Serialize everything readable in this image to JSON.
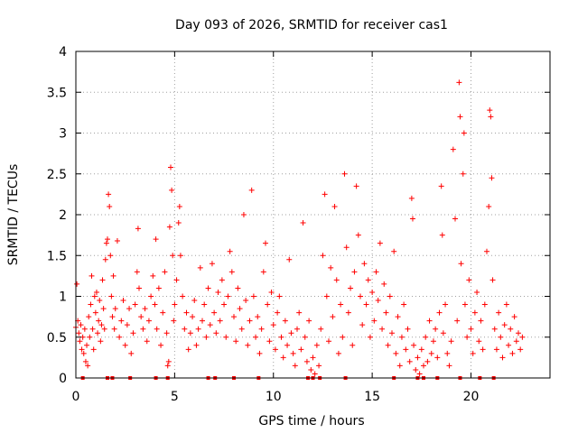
{
  "chart_data": {
    "type": "scatter",
    "title": "Day 093 of 2026, SRMTID for receiver cas1",
    "xlabel": "GPS time / hours",
    "ylabel": "SRMTID / TECUs",
    "xlim": [
      0,
      24
    ],
    "ylim": [
      0,
      4
    ],
    "xticks": [
      0,
      5,
      10,
      15,
      20
    ],
    "xtick_labels": [
      "0",
      "5",
      "10",
      "15",
      "20"
    ],
    "yticks": [
      0,
      0.5,
      1,
      1.5,
      2,
      2.5,
      3,
      3.5,
      4
    ],
    "ytick_labels": [
      "0",
      "0.5",
      "1",
      "1.5",
      "2",
      "2.5",
      "3",
      "3.5",
      "4"
    ],
    "grid": true,
    "marker": "plus",
    "color": "#ff0000",
    "series": [
      {
        "name": "SRMTID",
        "points": [
          [
            0.0,
            0.62
          ],
          [
            0.05,
            1.15
          ],
          [
            0.1,
            0.7
          ],
          [
            0.15,
            0.55
          ],
          [
            0.2,
            0.45
          ],
          [
            0.25,
            0.65
          ],
          [
            0.3,
            0.35
          ],
          [
            0.35,
            0.5
          ],
          [
            0.4,
            0.3
          ],
          [
            0.45,
            0.6
          ],
          [
            0.5,
            0.2
          ],
          [
            0.55,
            0.4
          ],
          [
            0.6,
            0.15
          ],
          [
            0.65,
            0.75
          ],
          [
            0.7,
            0.5
          ],
          [
            0.75,
            0.9
          ],
          [
            0.8,
            1.25
          ],
          [
            0.85,
            0.6
          ],
          [
            0.9,
            0.35
          ],
          [
            0.95,
            1.0
          ],
          [
            1.0,
            0.8
          ],
          [
            1.05,
            1.05
          ],
          [
            1.1,
            0.55
          ],
          [
            1.15,
            0.7
          ],
          [
            1.2,
            0.95
          ],
          [
            1.25,
            0.45
          ],
          [
            1.3,
            0.65
          ],
          [
            1.35,
            1.2
          ],
          [
            1.4,
            0.85
          ],
          [
            1.45,
            0.6
          ],
          [
            1.5,
            1.45
          ],
          [
            1.55,
            1.65
          ],
          [
            1.6,
            1.7
          ],
          [
            1.65,
            2.25
          ],
          [
            1.7,
            2.1
          ],
          [
            1.75,
            1.5
          ],
          [
            1.8,
            1.0
          ],
          [
            1.85,
            0.75
          ],
          [
            1.9,
            1.25
          ],
          [
            1.95,
            0.6
          ],
          [
            2.0,
            0.85
          ],
          [
            2.1,
            1.68
          ],
          [
            2.2,
            0.5
          ],
          [
            2.3,
            0.7
          ],
          [
            2.4,
            0.95
          ],
          [
            2.5,
            0.4
          ],
          [
            2.6,
            0.65
          ],
          [
            2.7,
            0.85
          ],
          [
            2.8,
            0.3
          ],
          [
            2.9,
            0.55
          ],
          [
            3.0,
            0.9
          ],
          [
            3.1,
            1.3
          ],
          [
            3.15,
            1.83
          ],
          [
            3.2,
            1.1
          ],
          [
            3.3,
            0.75
          ],
          [
            3.4,
            0.6
          ],
          [
            3.5,
            0.85
          ],
          [
            3.6,
            0.45
          ],
          [
            3.7,
            0.7
          ],
          [
            3.8,
            1.0
          ],
          [
            3.9,
            1.25
          ],
          [
            4.0,
            0.9
          ],
          [
            4.05,
            1.7
          ],
          [
            4.1,
            0.6
          ],
          [
            4.2,
            1.1
          ],
          [
            4.3,
            0.4
          ],
          [
            4.4,
            0.8
          ],
          [
            4.5,
            1.3
          ],
          [
            4.6,
            0.55
          ],
          [
            4.65,
            0.15
          ],
          [
            4.7,
            0.2
          ],
          [
            4.75,
            1.85
          ],
          [
            4.8,
            2.58
          ],
          [
            4.85,
            2.3
          ],
          [
            4.9,
            1.5
          ],
          [
            4.95,
            0.7
          ],
          [
            5.0,
            0.9
          ],
          [
            5.1,
            1.2
          ],
          [
            5.2,
            1.9
          ],
          [
            5.25,
            2.1
          ],
          [
            5.3,
            1.5
          ],
          [
            5.4,
            1.0
          ],
          [
            5.5,
            0.6
          ],
          [
            5.6,
            0.8
          ],
          [
            5.7,
            0.35
          ],
          [
            5.8,
            0.55
          ],
          [
            5.9,
            0.75
          ],
          [
            6.0,
            0.95
          ],
          [
            6.1,
            0.4
          ],
          [
            6.2,
            0.6
          ],
          [
            6.3,
            1.35
          ],
          [
            6.4,
            0.7
          ],
          [
            6.5,
            0.9
          ],
          [
            6.6,
            0.5
          ],
          [
            6.7,
            1.1
          ],
          [
            6.8,
            0.65
          ],
          [
            6.9,
            1.4
          ],
          [
            7.0,
            0.8
          ],
          [
            7.1,
            0.55
          ],
          [
            7.2,
            1.05
          ],
          [
            7.3,
            0.7
          ],
          [
            7.4,
            1.2
          ],
          [
            7.5,
            0.9
          ],
          [
            7.6,
            0.5
          ],
          [
            7.7,
            1.0
          ],
          [
            7.8,
            1.55
          ],
          [
            7.9,
            1.3
          ],
          [
            8.0,
            0.75
          ],
          [
            8.1,
            0.45
          ],
          [
            8.2,
            1.1
          ],
          [
            8.3,
            0.85
          ],
          [
            8.4,
            0.6
          ],
          [
            8.5,
            2.0
          ],
          [
            8.6,
            0.95
          ],
          [
            8.7,
            0.4
          ],
          [
            8.8,
            0.7
          ],
          [
            8.9,
            2.3
          ],
          [
            9.0,
            1.0
          ],
          [
            9.1,
            0.5
          ],
          [
            9.2,
            0.75
          ],
          [
            9.3,
            0.3
          ],
          [
            9.4,
            0.6
          ],
          [
            9.5,
            1.3
          ],
          [
            9.6,
            1.65
          ],
          [
            9.7,
            0.9
          ],
          [
            9.8,
            0.45
          ],
          [
            9.9,
            1.05
          ],
          [
            10.0,
            0.65
          ],
          [
            10.1,
            0.35
          ],
          [
            10.2,
            0.8
          ],
          [
            10.3,
            1.0
          ],
          [
            10.4,
            0.5
          ],
          [
            10.5,
            0.25
          ],
          [
            10.6,
            0.7
          ],
          [
            10.7,
            0.4
          ],
          [
            10.8,
            1.45
          ],
          [
            10.9,
            0.55
          ],
          [
            11.0,
            0.3
          ],
          [
            11.1,
            0.15
          ],
          [
            11.2,
            0.6
          ],
          [
            11.3,
            0.8
          ],
          [
            11.4,
            0.35
          ],
          [
            11.5,
            1.9
          ],
          [
            11.6,
            0.5
          ],
          [
            11.7,
            0.2
          ],
          [
            11.8,
            0.7
          ],
          [
            11.9,
            0.1
          ],
          [
            12.0,
            0.25
          ],
          [
            12.1,
            0.05
          ],
          [
            12.2,
            0.4
          ],
          [
            12.3,
            0.15
          ],
          [
            12.4,
            0.6
          ],
          [
            12.5,
            1.5
          ],
          [
            12.6,
            2.25
          ],
          [
            12.7,
            1.0
          ],
          [
            12.8,
            0.45
          ],
          [
            12.9,
            1.35
          ],
          [
            13.0,
            0.75
          ],
          [
            13.1,
            2.1
          ],
          [
            13.2,
            1.2
          ],
          [
            13.3,
            0.3
          ],
          [
            13.4,
            0.9
          ],
          [
            13.5,
            0.5
          ],
          [
            13.6,
            2.5
          ],
          [
            13.7,
            1.6
          ],
          [
            13.8,
            0.8
          ],
          [
            13.9,
            1.1
          ],
          [
            14.0,
            0.4
          ],
          [
            14.1,
            1.3
          ],
          [
            14.2,
            2.35
          ],
          [
            14.3,
            1.75
          ],
          [
            14.4,
            1.0
          ],
          [
            14.5,
            0.65
          ],
          [
            14.6,
            1.4
          ],
          [
            14.7,
            0.9
          ],
          [
            14.8,
            1.2
          ],
          [
            14.9,
            0.5
          ],
          [
            15.0,
            1.05
          ],
          [
            15.1,
            0.7
          ],
          [
            15.2,
            1.3
          ],
          [
            15.3,
            0.95
          ],
          [
            15.4,
            1.65
          ],
          [
            15.5,
            0.6
          ],
          [
            15.6,
            1.15
          ],
          [
            15.7,
            0.8
          ],
          [
            15.8,
            0.4
          ],
          [
            15.9,
            1.0
          ],
          [
            16.0,
            0.55
          ],
          [
            16.1,
            1.55
          ],
          [
            16.2,
            0.3
          ],
          [
            16.3,
            0.75
          ],
          [
            16.4,
            0.15
          ],
          [
            16.5,
            0.5
          ],
          [
            16.6,
            0.9
          ],
          [
            16.7,
            0.35
          ],
          [
            16.8,
            0.6
          ],
          [
            16.9,
            0.2
          ],
          [
            17.0,
            2.2
          ],
          [
            17.05,
            1.95
          ],
          [
            17.1,
            0.4
          ],
          [
            17.2,
            0.1
          ],
          [
            17.3,
            0.25
          ],
          [
            17.4,
            0.05
          ],
          [
            17.5,
            0.35
          ],
          [
            17.6,
            0.15
          ],
          [
            17.7,
            0.5
          ],
          [
            17.8,
            0.2
          ],
          [
            17.9,
            0.7
          ],
          [
            18.0,
            0.3
          ],
          [
            18.1,
            0.45
          ],
          [
            18.2,
            0.6
          ],
          [
            18.3,
            0.25
          ],
          [
            18.4,
            0.8
          ],
          [
            18.5,
            2.35
          ],
          [
            18.55,
            1.75
          ],
          [
            18.6,
            0.55
          ],
          [
            18.7,
            0.9
          ],
          [
            18.8,
            0.3
          ],
          [
            18.9,
            0.15
          ],
          [
            19.0,
            0.45
          ],
          [
            19.1,
            2.8
          ],
          [
            19.2,
            1.95
          ],
          [
            19.3,
            0.7
          ],
          [
            19.4,
            3.62
          ],
          [
            19.45,
            3.2
          ],
          [
            19.5,
            1.4
          ],
          [
            19.6,
            2.5
          ],
          [
            19.65,
            3.0
          ],
          [
            19.7,
            0.9
          ],
          [
            19.8,
            0.5
          ],
          [
            19.9,
            1.2
          ],
          [
            20.0,
            0.6
          ],
          [
            20.1,
            0.3
          ],
          [
            20.2,
            0.8
          ],
          [
            20.3,
            1.05
          ],
          [
            20.4,
            0.45
          ],
          [
            20.5,
            0.7
          ],
          [
            20.6,
            0.35
          ],
          [
            20.7,
            0.9
          ],
          [
            20.8,
            1.55
          ],
          [
            20.9,
            2.1
          ],
          [
            20.95,
            3.28
          ],
          [
            21.0,
            3.2
          ],
          [
            21.05,
            2.45
          ],
          [
            21.1,
            1.2
          ],
          [
            21.2,
            0.6
          ],
          [
            21.3,
            0.35
          ],
          [
            21.4,
            0.8
          ],
          [
            21.5,
            0.5
          ],
          [
            21.6,
            0.25
          ],
          [
            21.7,
            0.65
          ],
          [
            21.8,
            0.9
          ],
          [
            21.9,
            0.4
          ],
          [
            22.0,
            0.6
          ],
          [
            22.1,
            0.3
          ],
          [
            22.2,
            0.75
          ],
          [
            22.3,
            0.45
          ],
          [
            22.4,
            0.55
          ],
          [
            22.5,
            0.35
          ],
          [
            22.6,
            0.5
          ],
          [
            0.35,
            0.0
          ],
          [
            1.6,
            0.0
          ],
          [
            1.85,
            0.0
          ],
          [
            2.75,
            0.0
          ],
          [
            4.05,
            0.0
          ],
          [
            4.65,
            0.0
          ],
          [
            6.7,
            0.0
          ],
          [
            7.05,
            0.0
          ],
          [
            8.0,
            0.0
          ],
          [
            9.25,
            0.0
          ],
          [
            11.75,
            0.0
          ],
          [
            12.0,
            0.0
          ],
          [
            12.35,
            0.0
          ],
          [
            13.65,
            0.0
          ],
          [
            16.1,
            0.0
          ],
          [
            17.3,
            0.0
          ],
          [
            17.6,
            0.0
          ],
          [
            18.3,
            0.0
          ],
          [
            19.45,
            0.0
          ],
          [
            20.45,
            0.0
          ],
          [
            21.15,
            0.0
          ]
        ]
      }
    ]
  }
}
